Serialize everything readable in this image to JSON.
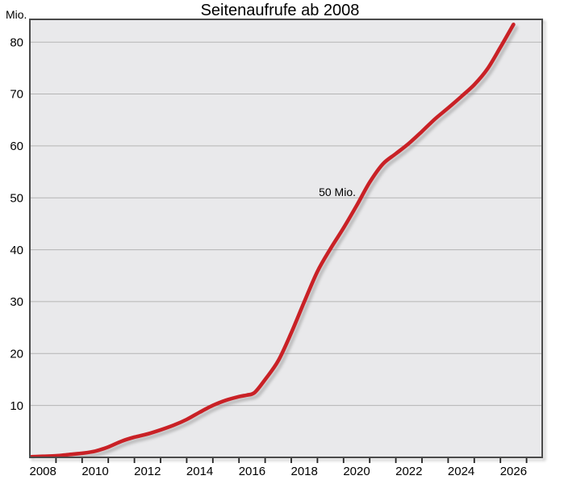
{
  "chart_data": {
    "type": "line",
    "title": "Seitenaufrufe ab 2008",
    "ylabel": "Mio.",
    "xlabel": "",
    "legend": "none",
    "grid": "horizontal-only",
    "xlim": [
      2008,
      2027.6
    ],
    "ylim": [
      0,
      84.38
    ],
    "yticks": [
      10,
      20,
      30,
      40,
      50,
      60,
      70,
      80
    ],
    "xticks_minor": [
      2009,
      2010,
      2011,
      2012,
      2013,
      2014,
      2015,
      2016,
      2017,
      2018,
      2019,
      2020,
      2021,
      2022,
      2023,
      2024,
      2025,
      2026,
      2027
    ],
    "xtick_labels": [
      "2008",
      "2010",
      "2012",
      "2014",
      "2016",
      "2018",
      "2020",
      "2022",
      "2024",
      "2026"
    ],
    "annotation": {
      "text": "50 Mio.",
      "x": 2020.47,
      "y": 50.35,
      "align": "right"
    },
    "series": [
      {
        "name": "Seitenaufrufe",
        "x": [
          2008.0,
          2008.5,
          2009.0,
          2009.5,
          2010.0,
          2010.5,
          2011.0,
          2011.5,
          2012.0,
          2012.5,
          2013.0,
          2013.5,
          2014.0,
          2014.5,
          2015.0,
          2015.5,
          2016.0,
          2016.3,
          2016.6,
          2017.0,
          2017.5,
          2018.0,
          2018.5,
          2019.0,
          2019.5,
          2020.0,
          2020.5,
          2021.0,
          2021.5,
          2022.0,
          2022.5,
          2023.0,
          2023.5,
          2024.0,
          2024.5,
          2025.0,
          2025.5,
          2026.0,
          2026.5
        ],
        "values": [
          0.1,
          0.2,
          0.3,
          0.55,
          0.8,
          1.2,
          2.0,
          3.1,
          3.9,
          4.5,
          5.3,
          6.2,
          7.3,
          8.7,
          10.0,
          11.0,
          11.7,
          12.0,
          12.5,
          15.0,
          18.6,
          24.0,
          30.0,
          35.8,
          40.2,
          44.2,
          48.5,
          53.0,
          56.5,
          58.5,
          60.5,
          62.8,
          65.2,
          67.3,
          69.5,
          71.8,
          74.8,
          79.0,
          83.4
        ]
      }
    ],
    "colors": {
      "line": "#c92126",
      "line_shadow": "#8e8e8e",
      "plot_background": "#e9e9eb",
      "gridline": "#b4b4b4",
      "frame": "#4a4a4a",
      "tick": "#222222",
      "text": "#000000",
      "page_background": "#ffffff"
    }
  }
}
